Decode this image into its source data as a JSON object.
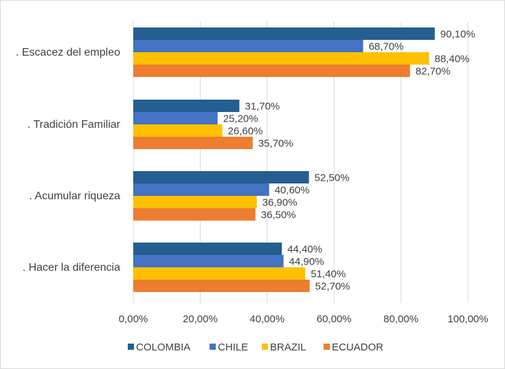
{
  "chart_data": {
    "type": "bar",
    "orientation": "horizontal",
    "categories": [
      ". Escacez del empleo",
      ". Tradición Familiar",
      ".  Acumular riqueza",
      ". Hacer la diferencia"
    ],
    "series": [
      {
        "name": "COLOMBIA",
        "color": "#255e91",
        "values": [
          90.1,
          31.7,
          52.5,
          44.4
        ],
        "labels": [
          "90,10%",
          "31,70%",
          "52,50%",
          "44,40%"
        ]
      },
      {
        "name": "CHILE",
        "color": "#4472c4",
        "values": [
          68.7,
          25.2,
          40.6,
          44.9
        ],
        "labels": [
          "68,70%",
          "25,20%",
          "40,60%",
          "44,90%"
        ]
      },
      {
        "name": "BRAZIL",
        "color": "#ffc000",
        "values": [
          88.4,
          26.6,
          36.9,
          51.4
        ],
        "labels": [
          "88,40%",
          "26,60%",
          "36,90%",
          "51,40%"
        ]
      },
      {
        "name": "ECUADOR",
        "color": "#ed7d31",
        "values": [
          82.7,
          35.7,
          36.5,
          52.7
        ],
        "labels": [
          "82,70%",
          "35,70%",
          "36,50%",
          "52,70%"
        ]
      }
    ],
    "xlim": [
      0,
      100
    ],
    "xticks": [
      0,
      20,
      40,
      60,
      80,
      100
    ],
    "xtick_labels": [
      "0,00%",
      "20,00%",
      "40,00%",
      "60,00%",
      "80,00%",
      "100,00%"
    ],
    "grid": "vertical",
    "legend_position": "bottom"
  }
}
